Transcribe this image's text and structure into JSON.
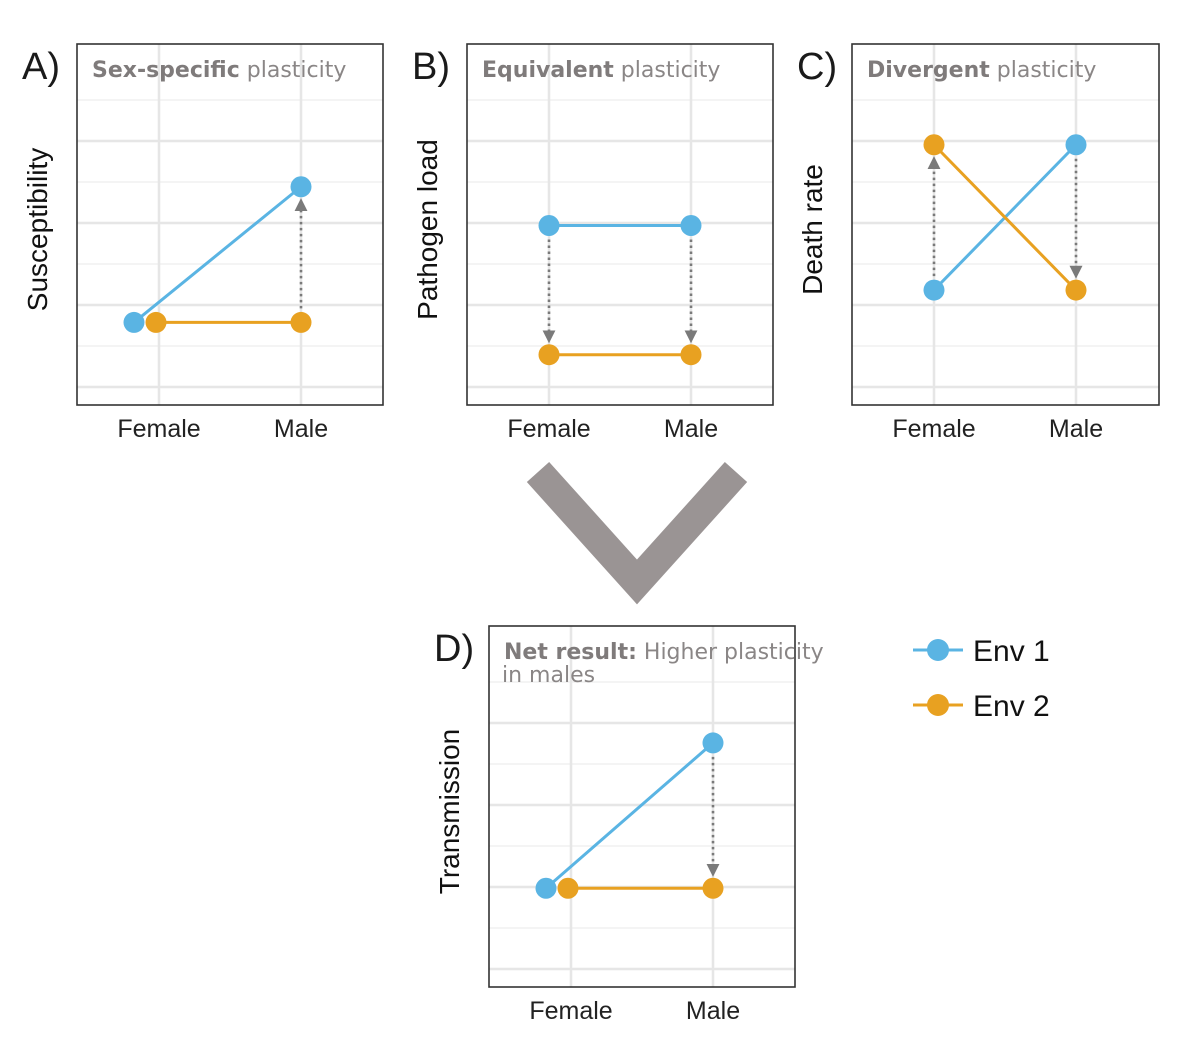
{
  "colors": {
    "env1": "#5ab4e3",
    "env2": "#e8a121",
    "arrow": "#7a7a7a",
    "chevron": "#9a9494"
  },
  "legend": [
    {
      "name": "Env 1",
      "color": "#5ab4e3"
    },
    {
      "name": "Env 2",
      "color": "#e8a121"
    }
  ],
  "chart_data": [
    {
      "type": "line",
      "panel": "A)",
      "title_bold": "Sex-specific",
      "title_rest": " plasticity",
      "ylabel": "Susceptibility",
      "categories": [
        "Female",
        "Male"
      ],
      "ylim": [
        0,
        10
      ],
      "series": [
        {
          "name": "Env 1",
          "values": [
            2.0,
            6.2
          ]
        },
        {
          "name": "Env 2",
          "values": [
            2.0,
            2.0
          ]
        }
      ],
      "arrows": [
        {
          "category": "Male",
          "from": 2.0,
          "to": 6.2
        }
      ]
    },
    {
      "type": "line",
      "panel": "B)",
      "title_bold": "Equivalent",
      "title_rest": " plasticity",
      "ylabel": "Pathogen load",
      "categories": [
        "Female",
        "Male"
      ],
      "ylim": [
        0,
        10
      ],
      "series": [
        {
          "name": "Env 1",
          "values": [
            5.0,
            5.0
          ]
        },
        {
          "name": "Env 2",
          "values": [
            1.0,
            1.0
          ]
        }
      ],
      "arrows": [
        {
          "category": "Female",
          "from": 5.0,
          "to": 1.0
        },
        {
          "category": "Male",
          "from": 5.0,
          "to": 1.0
        }
      ]
    },
    {
      "type": "line",
      "panel": "C)",
      "title_bold": "Divergent",
      "title_rest": " plasticity",
      "ylabel": "Death rate",
      "categories": [
        "Female",
        "Male"
      ],
      "ylim": [
        0,
        10
      ],
      "series": [
        {
          "name": "Env 1",
          "values": [
            3.0,
            7.5
          ]
        },
        {
          "name": "Env 2",
          "values": [
            7.5,
            3.0
          ]
        }
      ],
      "arrows": [
        {
          "category": "Female",
          "from": 3.0,
          "to": 7.5
        },
        {
          "category": "Male",
          "from": 7.5,
          "to": 3.0
        }
      ]
    },
    {
      "type": "line",
      "panel": "D)",
      "title_bold": "Net result:",
      "title_rest": " Higher plasticity",
      "title_line2": "in males",
      "ylabel": "Transmission",
      "categories": [
        "Female",
        "Male"
      ],
      "ylim": [
        0,
        10
      ],
      "series": [
        {
          "name": "Env 1",
          "values": [
            2.5,
            7.0
          ]
        },
        {
          "name": "Env 2",
          "values": [
            2.5,
            2.5
          ]
        }
      ],
      "arrows": [
        {
          "category": "Male",
          "from": 7.0,
          "to": 2.5
        }
      ]
    }
  ]
}
